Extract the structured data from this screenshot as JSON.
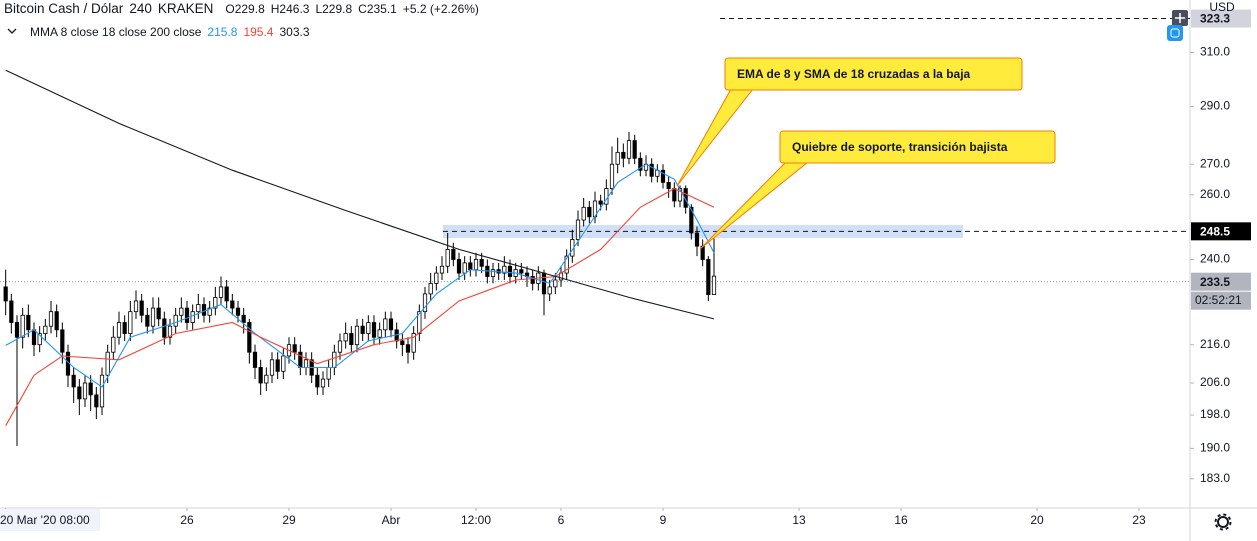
{
  "chart_data": {
    "type": "candlestick",
    "symbol": "Bitcoin Cash / Dólar",
    "interval": "240",
    "exchange": "KRAKEN",
    "ohlc_labels": [
      "O229.8",
      "H246.3",
      "L229.8",
      "C235.1",
      "+5.2 (+2.26%)"
    ],
    "indicator": "MMA 8 close 18 close 200 close",
    "currency": "USD",
    "log": true,
    "up_color": "#ffffff",
    "down_color": "#000000",
    "wick_color": "#000000",
    "xlim": [
      -1,
      209
    ],
    "ylim": [
      176.5,
      330.8
    ],
    "xticks": [
      {
        "value": 0,
        "label": "20 Mar '20  08:00"
      },
      {
        "value": 32,
        "label": "26"
      },
      {
        "value": 50,
        "label": "29"
      },
      {
        "value": 68,
        "label": "Abr"
      },
      {
        "value": 83,
        "label": "12:00"
      },
      {
        "value": 98,
        "label": "6"
      },
      {
        "value": 116,
        "label": "9"
      },
      {
        "value": 140,
        "label": "13"
      },
      {
        "value": 158,
        "label": "16"
      },
      {
        "value": 182,
        "label": "20"
      },
      {
        "value": 200,
        "label": "23"
      }
    ],
    "yticks": [
      {
        "value": 183,
        "label": "183.0"
      },
      {
        "value": 190,
        "label": "190.0"
      },
      {
        "value": 198,
        "label": "198.0"
      },
      {
        "value": 206,
        "label": "206.0"
      },
      {
        "value": 216,
        "label": "216.0"
      },
      {
        "value": 240,
        "label": "240.0"
      },
      {
        "value": 260,
        "label": "260.0"
      },
      {
        "value": 270,
        "label": "270.0"
      },
      {
        "value": 290,
        "label": "290.0"
      },
      {
        "value": 310,
        "label": "310.0"
      }
    ],
    "open": [
      232,
      228,
      222,
      218,
      224,
      220,
      216,
      219,
      221,
      225,
      220,
      214,
      208,
      205,
      202,
      206,
      203,
      200,
      208,
      214,
      218,
      222,
      219,
      225,
      228,
      224,
      221,
      226,
      223,
      218,
      221,
      224,
      226,
      222,
      225,
      227,
      224,
      226,
      229,
      232,
      228,
      226,
      224,
      222,
      214,
      210,
      206,
      208,
      212,
      209,
      213,
      216,
      214,
      210,
      212,
      208,
      205,
      207,
      210,
      214,
      217,
      219,
      216,
      221,
      219,
      222,
      218,
      220,
      223,
      220,
      217,
      216,
      214,
      219,
      225,
      230,
      233,
      236,
      238,
      243,
      240,
      236,
      239,
      237,
      240,
      238,
      235,
      237,
      236,
      238,
      235,
      237,
      236,
      235,
      233,
      236,
      230,
      232,
      234,
      236,
      241,
      246,
      252,
      256,
      253,
      258,
      257,
      262,
      270,
      274,
      272,
      278,
      272,
      268,
      270,
      266,
      268,
      264,
      262,
      258,
      262,
      256,
      248,
      244,
      240,
      229.8
    ],
    "high": [
      237,
      230,
      224,
      226,
      227,
      222,
      221,
      223,
      228,
      227,
      222,
      216,
      210,
      207,
      208,
      208,
      205,
      210,
      216,
      221,
      225,
      224,
      228,
      231,
      230,
      226,
      229,
      229,
      225,
      223,
      226,
      229,
      228,
      227,
      230,
      229,
      228,
      232,
      235,
      234,
      230,
      228,
      226,
      223,
      216,
      212,
      210,
      214,
      214,
      215,
      218,
      218,
      216,
      214,
      214,
      210,
      209,
      212,
      216,
      219,
      222,
      221,
      223,
      223,
      224,
      224,
      222,
      225,
      225,
      222,
      219,
      218,
      221,
      227,
      232,
      236,
      238,
      241,
      248,
      245,
      242,
      241,
      241,
      242,
      242,
      240,
      239,
      239,
      241,
      240,
      239,
      239,
      238,
      237,
      238,
      237,
      234,
      236,
      238,
      243,
      249,
      255,
      259,
      258,
      261,
      260,
      265,
      276,
      279,
      277,
      281,
      280,
      274,
      273,
      272,
      270,
      270,
      266,
      264,
      263,
      263,
      257,
      250,
      246,
      241,
      246.3
    ],
    "low": [
      224,
      219,
      190.6,
      215,
      218,
      213,
      214,
      217,
      219,
      218,
      211,
      205,
      201,
      198,
      200,
      199,
      197,
      198,
      206,
      212,
      216,
      217,
      217,
      223,
      222,
      219,
      219,
      221,
      216,
      216,
      219,
      222,
      220,
      220,
      223,
      222,
      222,
      224,
      227,
      226,
      224,
      222,
      219,
      211,
      207,
      203,
      204,
      206,
      207,
      207,
      211,
      212,
      208,
      208,
      206,
      203,
      203,
      205,
      208,
      212,
      215,
      214,
      214,
      217,
      217,
      216,
      216,
      218,
      218,
      215,
      213,
      211,
      212,
      217,
      223,
      228,
      231,
      234,
      236,
      238,
      234,
      234,
      235,
      235,
      236,
      233,
      233,
      234,
      234,
      233,
      233,
      234,
      232,
      231,
      231,
      224,
      228,
      230,
      232,
      234,
      239,
      244,
      250,
      251,
      251,
      255,
      255,
      260,
      267,
      269,
      270,
      270,
      266,
      266,
      264,
      264,
      262,
      259,
      256,
      256,
      254,
      246,
      241,
      238,
      228,
      229.8
    ],
    "close": [
      228,
      222,
      218,
      224,
      220,
      216,
      219,
      221,
      225,
      220,
      214,
      208,
      205,
      202,
      206,
      203,
      200,
      208,
      214,
      218,
      222,
      219,
      225,
      228,
      224,
      221,
      226,
      223,
      218,
      221,
      224,
      226,
      222,
      225,
      227,
      224,
      226,
      229,
      232,
      228,
      226,
      224,
      222,
      214,
      210,
      206,
      208,
      212,
      209,
      213,
      216,
      214,
      210,
      212,
      208,
      205,
      207,
      210,
      214,
      217,
      219,
      216,
      221,
      219,
      222,
      218,
      220,
      223,
      220,
      217,
      216,
      214,
      219,
      225,
      230,
      233,
      236,
      238,
      243,
      240,
      236,
      239,
      237,
      240,
      238,
      235,
      237,
      236,
      238,
      235,
      237,
      236,
      235,
      233,
      236,
      230,
      232,
      234,
      236,
      241,
      246,
      252,
      256,
      253,
      258,
      257,
      262,
      270,
      274,
      272,
      278,
      272,
      268,
      270,
      266,
      268,
      264,
      262,
      258,
      262,
      256,
      248,
      244,
      240,
      229.8,
      235.1
    ],
    "lines": [
      {
        "color": "#2196f3",
        "current": 215.8,
        "x": [
          0,
          5,
          12,
          17,
          22,
          30,
          38,
          44,
          52,
          58,
          64,
          70,
          76,
          82,
          90,
          96,
          102,
          108,
          113,
          118,
          122,
          125
        ],
        "values": [
          215.8,
          220,
          210,
          205,
          218,
          222,
          227,
          219,
          210,
          210,
          217,
          219,
          230,
          237,
          236,
          233,
          248,
          264,
          270,
          265,
          252,
          242
        ]
      },
      {
        "color": "#f44336",
        "current": 195.4,
        "x": [
          0,
          5,
          10,
          20,
          30,
          40,
          45,
          55,
          65,
          72,
          80,
          90,
          97,
          105,
          112,
          118,
          125
        ],
        "values": [
          195.4,
          208,
          213,
          212,
          219,
          222,
          218,
          211,
          216,
          218,
          228,
          234,
          235,
          243,
          256,
          262,
          256
        ]
      },
      {
        "color": "#131722",
        "current": 303.3,
        "x": [
          0,
          20,
          40,
          60,
          80,
          95,
          110,
          125
        ],
        "values": [
          303.3,
          284,
          268,
          255,
          243,
          236,
          229,
          223
        ]
      }
    ],
    "price_lines": [
      {
        "value": 323.3,
        "style": "dashed",
        "label_fill": "#d1d4dc",
        "label_color": "#131722"
      },
      {
        "value": 248.5,
        "style": "dashed",
        "label_fill": "#000000",
        "label_color": "#ffffff"
      },
      {
        "value": 233.5,
        "style": "dotted",
        "label_fill": "#b2b5be",
        "label_color": "#131722"
      }
    ],
    "countdown": "02:52:21",
    "annotations": [
      "EMA de 8 y SMA de 18 cruzadas a la baja",
      "Quiebre de soporte, transición bajista"
    ]
  }
}
